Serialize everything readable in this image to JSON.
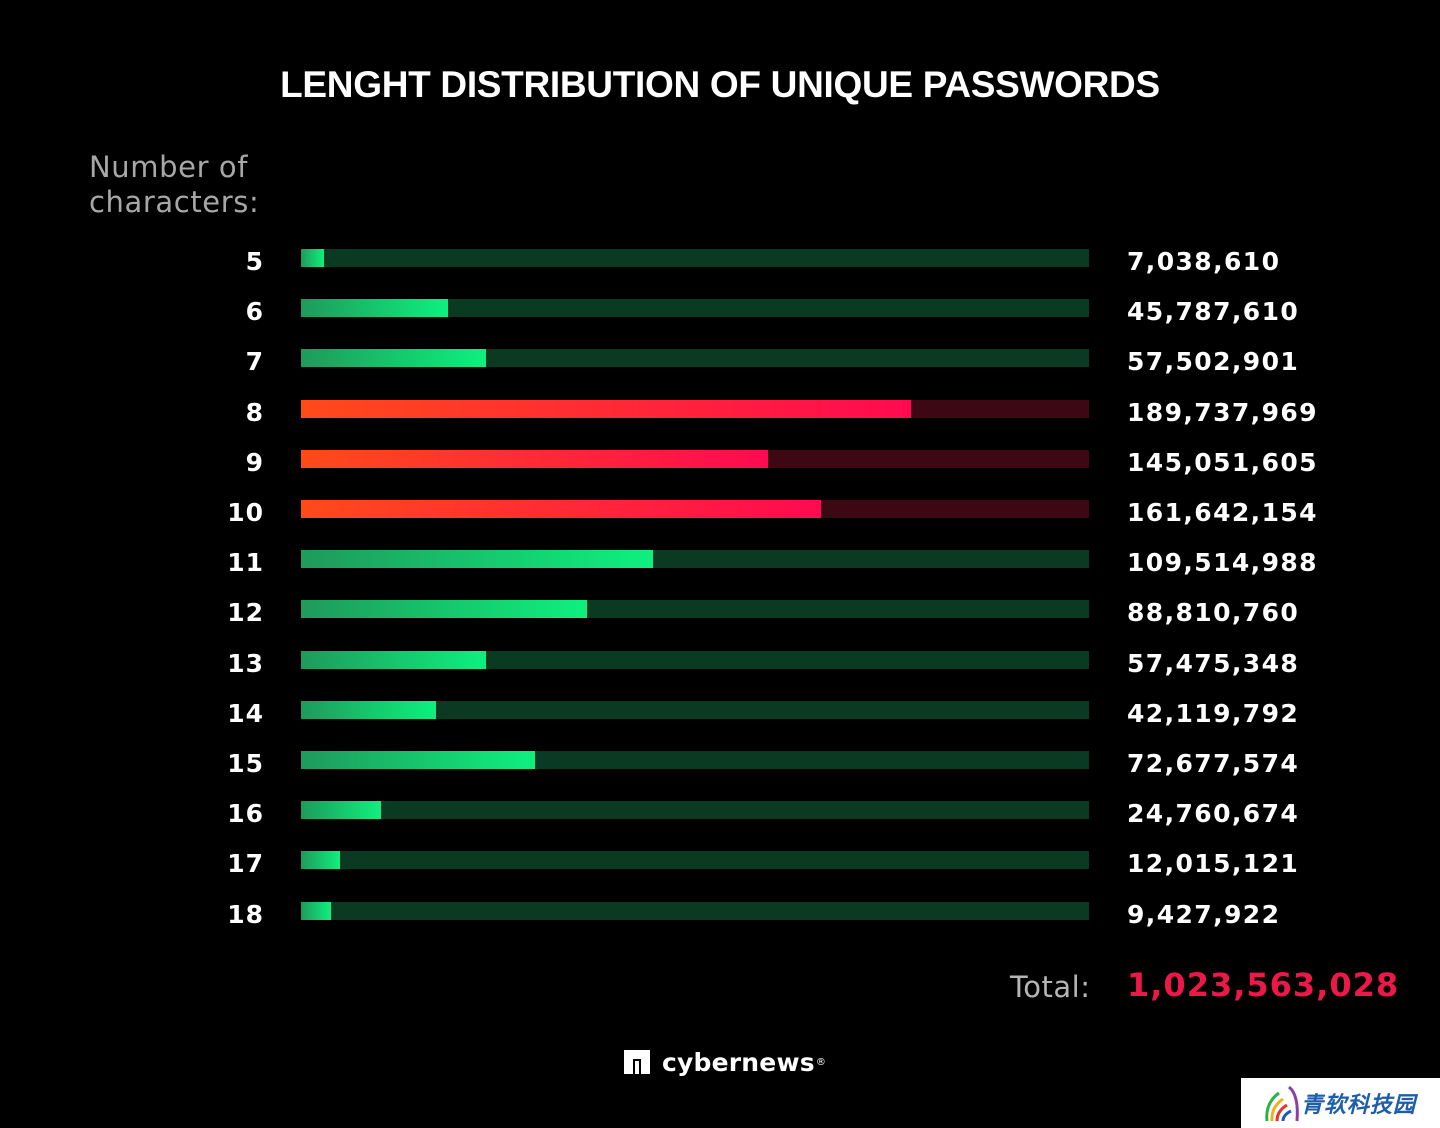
{
  "title": "LENGHT DISTRIBUTION OF UNIQUE PASSWORDS",
  "ylabel_line1": "Number of",
  "ylabel_line2": "characters:",
  "total_label": "Total:",
  "total_value": "1,023,563,028",
  "brand": "cybernews",
  "brand_mark": "®",
  "watermark": "青软科技园",
  "colors": {
    "background": "#000000",
    "green_start": "#1f9a5b",
    "green_end": "#0ef07e",
    "green_track": "#0a3a22",
    "red_start": "#ff4a1a",
    "red_end": "#ff0a50",
    "red_track": "#3d0714",
    "total": "#ec1848"
  },
  "chart_data": {
    "type": "bar",
    "orientation": "horizontal",
    "title": "LENGHT DISTRIBUTION OF UNIQUE PASSWORDS",
    "ylabel": "Number of characters:",
    "xlabel": "",
    "xlim": [
      0,
      245000000
    ],
    "categories": [
      "5",
      "6",
      "7",
      "8",
      "9",
      "10",
      "11",
      "12",
      "13",
      "14",
      "15",
      "16",
      "17",
      "18"
    ],
    "values": [
      7038610,
      45787610,
      57502901,
      189737969,
      145051605,
      161642154,
      109514988,
      88810760,
      57475348,
      42119792,
      72677574,
      24760674,
      12015121,
      9427922
    ],
    "value_labels": [
      "7,038,610",
      "45,787,610",
      "57,502,901",
      "189,737,969",
      "145,051,605",
      "161,642,154",
      "109,514,988",
      "88,810,760",
      "57,475,348",
      "42,119,792",
      "72,677,574",
      "24,760,674",
      "12,015,121",
      "9,427,922"
    ],
    "highlighted": [
      "8",
      "9",
      "10"
    ],
    "total": 1023563028,
    "legend": false,
    "grid": false
  }
}
